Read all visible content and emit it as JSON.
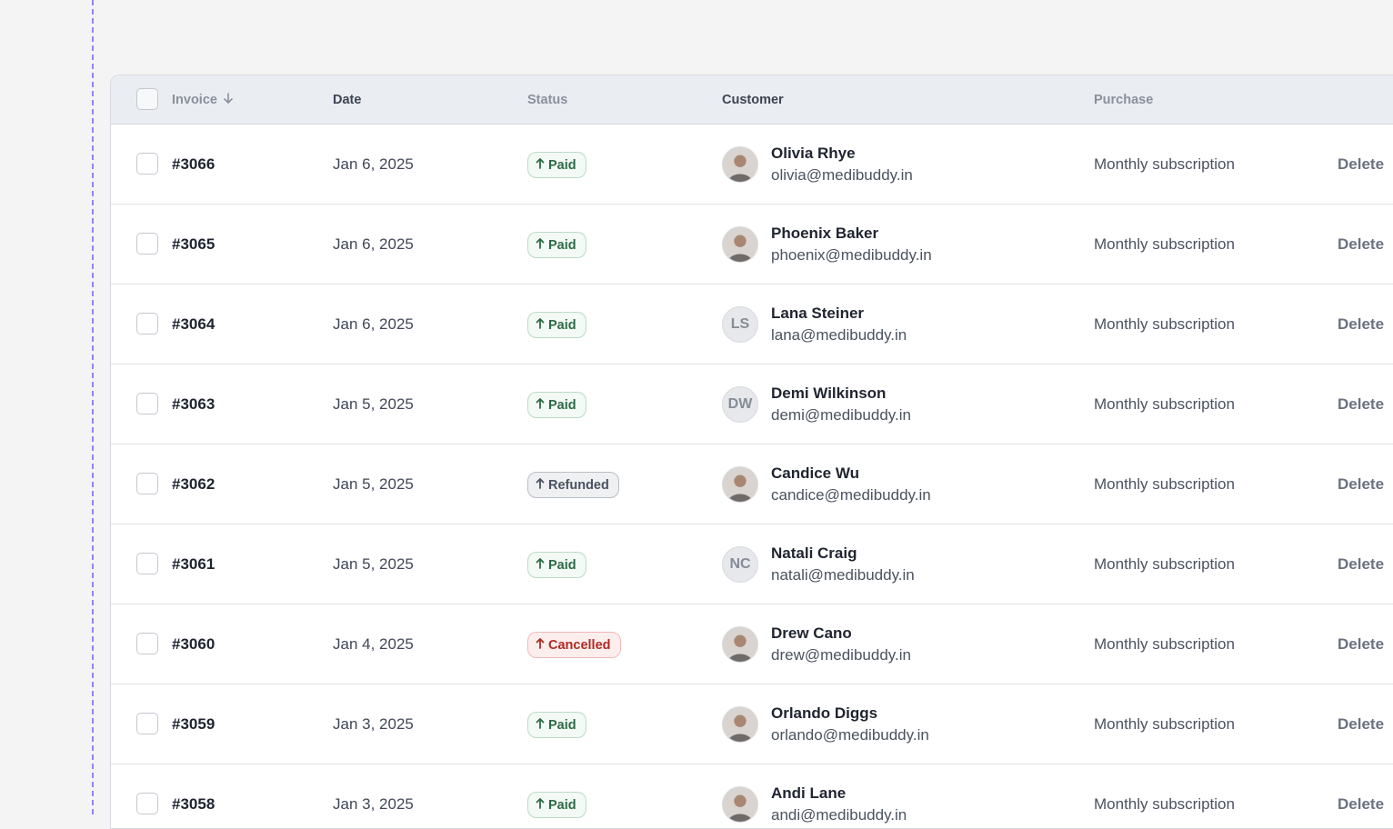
{
  "header": {
    "invoice": "Invoice",
    "date": "Date",
    "status": "Status",
    "customer": "Customer",
    "purchase": "Purchase"
  },
  "colors": {
    "paid": "#2c6b45",
    "refunded": "#4a5260",
    "cancelled": "#b02a22",
    "guide": "#8f86f0"
  },
  "rows": [
    {
      "invoice": "#3066",
      "date": "Jan 6, 2025",
      "status": "Paid",
      "status_type": "paid",
      "name": "Olivia Rhye",
      "email": "olivia@medibuddy.in",
      "avatar": "photo",
      "purchase": "Monthly subscription",
      "action": "Delete"
    },
    {
      "invoice": "#3065",
      "date": "Jan 6, 2025",
      "status": "Paid",
      "status_type": "paid",
      "name": "Phoenix Baker",
      "email": "phoenix@medibuddy.in",
      "avatar": "photo",
      "purchase": "Monthly subscription",
      "action": "Delete"
    },
    {
      "invoice": "#3064",
      "date": "Jan 6, 2025",
      "status": "Paid",
      "status_type": "paid",
      "name": "Lana Steiner",
      "email": "lana@medibuddy.in",
      "avatar": "LS",
      "purchase": "Monthly subscription",
      "action": "Delete"
    },
    {
      "invoice": "#3063",
      "date": "Jan 5, 2025",
      "status": "Paid",
      "status_type": "paid",
      "name": "Demi Wilkinson",
      "email": "demi@medibuddy.in",
      "avatar": "DW",
      "purchase": "Monthly subscription",
      "action": "Delete"
    },
    {
      "invoice": "#3062",
      "date": "Jan 5, 2025",
      "status": "Refunded",
      "status_type": "refunded",
      "name": "Candice Wu",
      "email": "candice@medibuddy.in",
      "avatar": "photo",
      "purchase": "Monthly subscription",
      "action": "Delete"
    },
    {
      "invoice": "#3061",
      "date": "Jan 5, 2025",
      "status": "Paid",
      "status_type": "paid",
      "name": "Natali Craig",
      "email": "natali@medibuddy.in",
      "avatar": "NC",
      "purchase": "Monthly subscription",
      "action": "Delete"
    },
    {
      "invoice": "#3060",
      "date": "Jan 4, 2025",
      "status": "Cancelled",
      "status_type": "cancelled",
      "name": "Drew Cano",
      "email": "drew@medibuddy.in",
      "avatar": "photo",
      "purchase": "Monthly subscription",
      "action": "Delete"
    },
    {
      "invoice": "#3059",
      "date": "Jan 3, 2025",
      "status": "Paid",
      "status_type": "paid",
      "name": "Orlando Diggs",
      "email": "orlando@medibuddy.in",
      "avatar": "photo",
      "purchase": "Monthly subscription",
      "action": "Delete"
    },
    {
      "invoice": "#3058",
      "date": "Jan 3, 2025",
      "status": "Paid",
      "status_type": "paid",
      "name": "Andi Lane",
      "email": "andi@medibuddy.in",
      "avatar": "photo",
      "purchase": "Monthly subscription",
      "action": "Delete"
    }
  ]
}
